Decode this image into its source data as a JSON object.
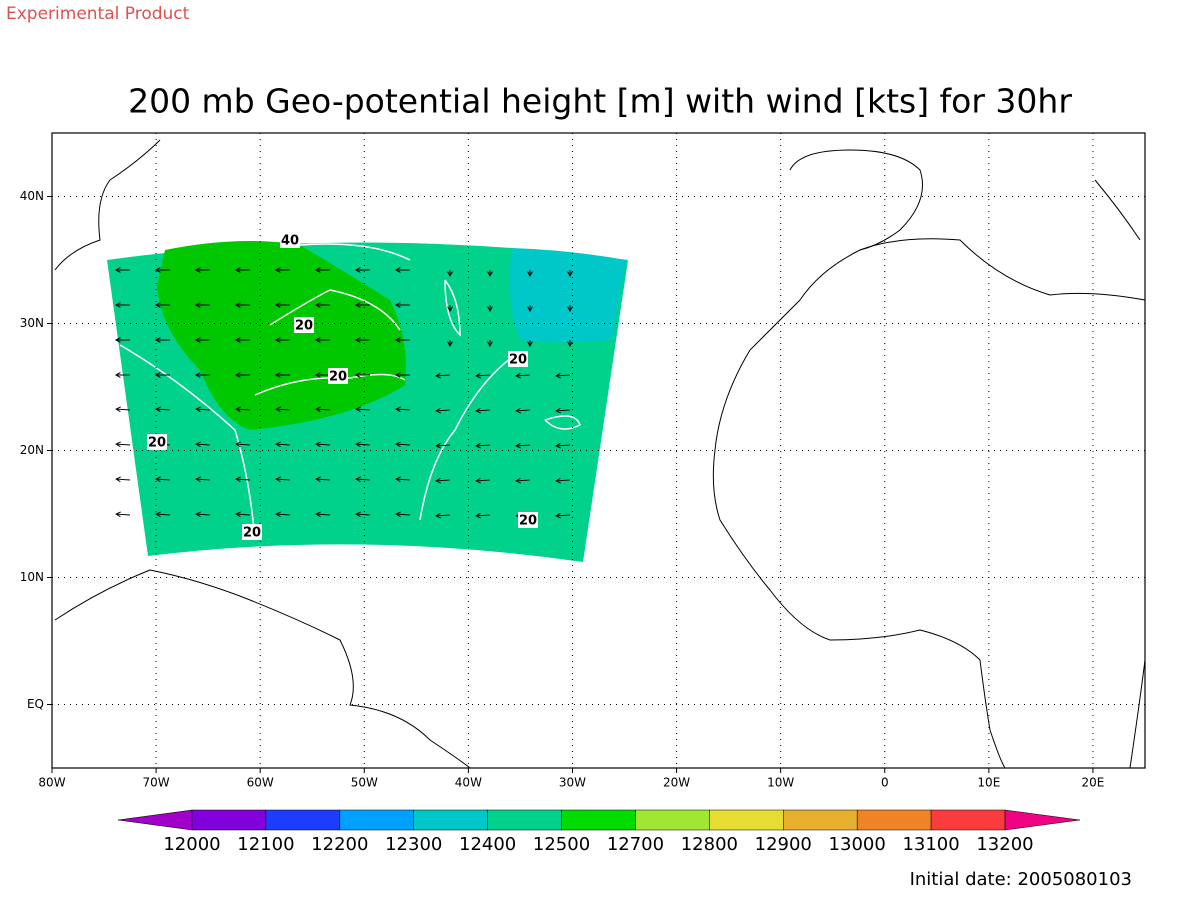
{
  "header": {
    "product": "Experimental Product",
    "title": "200 mb Geo-potential height [m] with wind [kts] for 30hr"
  },
  "map": {
    "lon_range": [
      -80,
      25
    ],
    "lat_range": [
      -5,
      45
    ],
    "lon_ticks": [
      {
        "value": -80,
        "label": "80W"
      },
      {
        "value": -70,
        "label": "70W"
      },
      {
        "value": -60,
        "label": "60W"
      },
      {
        "value": -50,
        "label": "50W"
      },
      {
        "value": -40,
        "label": "40W"
      },
      {
        "value": -30,
        "label": "30W"
      },
      {
        "value": -20,
        "label": "20W"
      },
      {
        "value": -10,
        "label": "10W"
      },
      0,
      {
        "value": 10,
        "label": "10E"
      },
      {
        "value": 20,
        "label": "20E"
      }
    ],
    "lat_ticks": [
      {
        "value": 0,
        "label": "EQ"
      },
      {
        "value": 10,
        "label": "10N"
      },
      {
        "value": 20,
        "label": "20N"
      },
      {
        "value": 30,
        "label": "30N"
      },
      {
        "value": 40,
        "label": "40N"
      }
    ],
    "contour_labels": [
      "40",
      "20",
      "20",
      "20",
      "20",
      "20",
      "20"
    ]
  },
  "colorbar": {
    "levels": [
      12000,
      12100,
      12200,
      12300,
      12400,
      12500,
      12700,
      12800,
      12900,
      13000,
      13100,
      13200
    ],
    "colors": [
      "#a000c8",
      "#8200dc",
      "#1e3cff",
      "#00a0ff",
      "#00c8c8",
      "#00d28c",
      "#00dc00",
      "#a0e632",
      "#e6dc32",
      "#e6af2d",
      "#f08228",
      "#fa3c3c",
      "#f00082"
    ]
  },
  "footer": {
    "initial_date": "Initial date: 2005080103"
  }
}
